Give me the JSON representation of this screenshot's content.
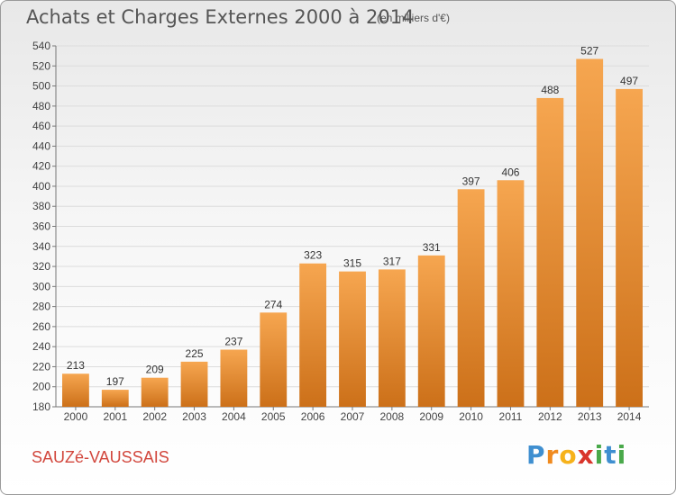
{
  "header": {
    "title": "Achats et Charges Externes 2000 à 2014",
    "unit": "(en milliers d'€)"
  },
  "footer": {
    "commune": "SAUZé-VAUSSAIS",
    "logo": [
      "P",
      "r",
      "o",
      "x",
      "i",
      "t",
      "i"
    ]
  },
  "colors": {
    "bar_light": "#f6a650",
    "bar_dark": "#cc7019",
    "commune_text": "#d2473d",
    "logo_letters": [
      "#3f8fd0",
      "#f08a1e",
      "#f6b21b",
      "#d9342b",
      "#49a94a",
      "#3f8fd0",
      "#49a94a"
    ]
  },
  "chart_data": {
    "type": "bar",
    "title": "Achats et Charges Externes 2000 à 2014",
    "subtitle": "(en milliers d'€)",
    "xlabel": "",
    "ylabel": "",
    "categories": [
      "2000",
      "2001",
      "2002",
      "2003",
      "2004",
      "2005",
      "2006",
      "2007",
      "2008",
      "2009",
      "2010",
      "2011",
      "2012",
      "2013",
      "2014"
    ],
    "values": [
      213,
      197,
      209,
      225,
      237,
      274,
      323,
      315,
      317,
      331,
      397,
      406,
      488,
      527,
      497
    ],
    "ylim": [
      180,
      540
    ],
    "yticks": [
      "180",
      "200",
      "220",
      "240",
      "260",
      "280",
      "300",
      "320",
      "340",
      "360",
      "380",
      "400",
      "420",
      "440",
      "460",
      "480",
      "500",
      "520",
      "540"
    ],
    "grid": true
  }
}
